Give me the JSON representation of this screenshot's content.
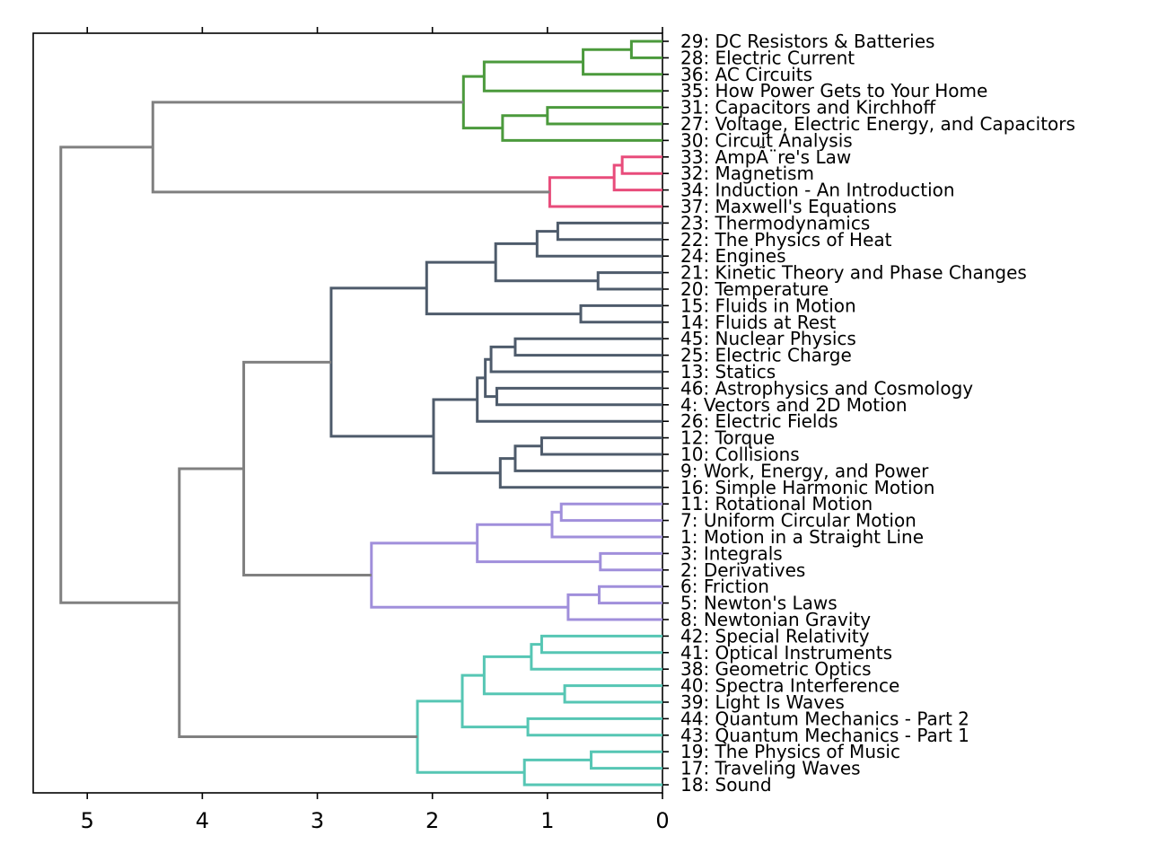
{
  "chart_data": {
    "type": "dendrogram",
    "orientation": "left",
    "title": "",
    "xlabel": "",
    "ylabel": "",
    "xlim": [
      5.47,
      0
    ],
    "x_ticks": [
      5,
      4,
      3,
      2,
      1,
      0
    ],
    "grid": false,
    "leaves": [
      "29: DC Resistors & Batteries",
      "28: Electric Current",
      "36: AC Circuits",
      "35: How Power Gets to Your Home",
      "31: Capacitors and Kirchhoff",
      "27: Voltage, Electric Energy, and Capacitors",
      "30: Circuit Analysis",
      "33: AmpÃ¨re's Law",
      "32: Magnetism",
      "34: Induction - An Introduction",
      "37: Maxwell's Equations",
      "23: Thermodynamics",
      "22: The Physics of Heat",
      "24: Engines",
      "21: Kinetic Theory and Phase Changes",
      "20: Temperature",
      "15: Fluids in Motion",
      "14: Fluids at Rest",
      "45: Nuclear Physics",
      "25: Electric Charge",
      "13: Statics",
      "46: Astrophysics and Cosmology",
      "4: Vectors and 2D Motion",
      "26: Electric Fields",
      "12: Torque",
      "10: Collisions",
      "9: Work, Energy, and Power",
      "16: Simple Harmonic Motion",
      "11: Rotational Motion",
      "7: Uniform Circular Motion",
      "1: Motion in a Straight Line",
      "3: Integrals",
      "2: Derivatives",
      "6: Friction",
      "5: Newton's Laws",
      "8: Newtonian Gravity",
      "42: Special Relativity",
      "41: Optical Instruments",
      "38: Geometric Optics",
      "40: Spectra Interference",
      "39: Light Is Waves",
      "44: Quantum Mechanics - Part 2",
      "43: Quantum Mechanics - Part 1",
      "19: The Physics of Music",
      "17: Traveling Waves",
      "18: Sound"
    ],
    "colors": {
      "green": "#4b9a3c",
      "pink": "#e84c7b",
      "slate": "#4e5b6b",
      "purple": "#a08fdb",
      "teal": "#56c6b4",
      "gray": "#808080"
    },
    "merges": [
      {
        "a": 0,
        "b": 1,
        "height": 0.27,
        "color": "green"
      },
      {
        "a": "m0",
        "b": 2,
        "height": 0.69,
        "color": "green"
      },
      {
        "a": "m1",
        "b": 3,
        "height": 1.55,
        "color": "green"
      },
      {
        "a": 4,
        "b": 5,
        "height": 1.0,
        "color": "green"
      },
      {
        "a": "m3",
        "b": 6,
        "height": 1.39,
        "color": "green"
      },
      {
        "a": "m2",
        "b": "m4",
        "height": 1.73,
        "color": "green"
      },
      {
        "a": 7,
        "b": 8,
        "height": 0.35,
        "color": "pink"
      },
      {
        "a": "m6",
        "b": 9,
        "height": 0.42,
        "color": "pink"
      },
      {
        "a": "m7",
        "b": 10,
        "height": 0.98,
        "color": "pink"
      },
      {
        "a": "m5",
        "b": "m8",
        "height": 4.43,
        "color": "gray"
      },
      {
        "a": 11,
        "b": 12,
        "height": 0.91,
        "color": "slate"
      },
      {
        "a": "m10",
        "b": 13,
        "height": 1.09,
        "color": "slate"
      },
      {
        "a": 14,
        "b": 15,
        "height": 0.56,
        "color": "slate"
      },
      {
        "a": "m11",
        "b": "m12",
        "height": 1.45,
        "color": "slate"
      },
      {
        "a": 16,
        "b": 17,
        "height": 0.71,
        "color": "slate"
      },
      {
        "a": "m13",
        "b": "m14",
        "height": 2.05,
        "color": "slate"
      },
      {
        "a": 18,
        "b": 19,
        "height": 1.28,
        "color": "slate"
      },
      {
        "a": "m16",
        "b": 20,
        "height": 1.49,
        "color": "slate"
      },
      {
        "a": 21,
        "b": 22,
        "height": 1.44,
        "color": "slate"
      },
      {
        "a": "m17",
        "b": "m18",
        "height": 1.54,
        "color": "slate"
      },
      {
        "a": "m19",
        "b": 23,
        "height": 1.61,
        "color": "slate"
      },
      {
        "a": 24,
        "b": 25,
        "height": 1.05,
        "color": "slate"
      },
      {
        "a": "m21",
        "b": 26,
        "height": 1.28,
        "color": "slate"
      },
      {
        "a": "m22",
        "b": 27,
        "height": 1.41,
        "color": "slate"
      },
      {
        "a": "m20",
        "b": "m23",
        "height": 1.99,
        "color": "slate"
      },
      {
        "a": "m15",
        "b": "m24",
        "height": 2.88,
        "color": "slate"
      },
      {
        "a": 28,
        "b": 29,
        "height": 0.88,
        "color": "purple"
      },
      {
        "a": "m26",
        "b": 30,
        "height": 0.96,
        "color": "purple"
      },
      {
        "a": 31,
        "b": 32,
        "height": 0.54,
        "color": "purple"
      },
      {
        "a": "m27",
        "b": "m28",
        "height": 1.61,
        "color": "purple"
      },
      {
        "a": 33,
        "b": 34,
        "height": 0.55,
        "color": "purple"
      },
      {
        "a": "m30",
        "b": 35,
        "height": 0.82,
        "color": "purple"
      },
      {
        "a": "m29",
        "b": "m31",
        "height": 2.53,
        "color": "purple"
      },
      {
        "a": "m25",
        "b": "m32",
        "height": 3.64,
        "color": "gray"
      },
      {
        "a": 36,
        "b": 37,
        "height": 1.05,
        "color": "teal"
      },
      {
        "a": "m34",
        "b": 38,
        "height": 1.14,
        "color": "teal"
      },
      {
        "a": 39,
        "b": 40,
        "height": 0.85,
        "color": "teal"
      },
      {
        "a": "m35",
        "b": "m36",
        "height": 1.55,
        "color": "teal"
      },
      {
        "a": 41,
        "b": 42,
        "height": 1.17,
        "color": "teal"
      },
      {
        "a": "m37",
        "b": "m38",
        "height": 1.74,
        "color": "teal"
      },
      {
        "a": 43,
        "b": 44,
        "height": 0.62,
        "color": "teal"
      },
      {
        "a": "m40",
        "b": 45,
        "height": 1.2,
        "color": "teal"
      },
      {
        "a": "m39",
        "b": "m41",
        "height": 2.13,
        "color": "teal"
      },
      {
        "a": "m33",
        "b": "m42",
        "height": 4.2,
        "color": "gray"
      },
      {
        "a": "m9",
        "b": "m43",
        "height": 5.23,
        "color": "gray"
      }
    ]
  }
}
